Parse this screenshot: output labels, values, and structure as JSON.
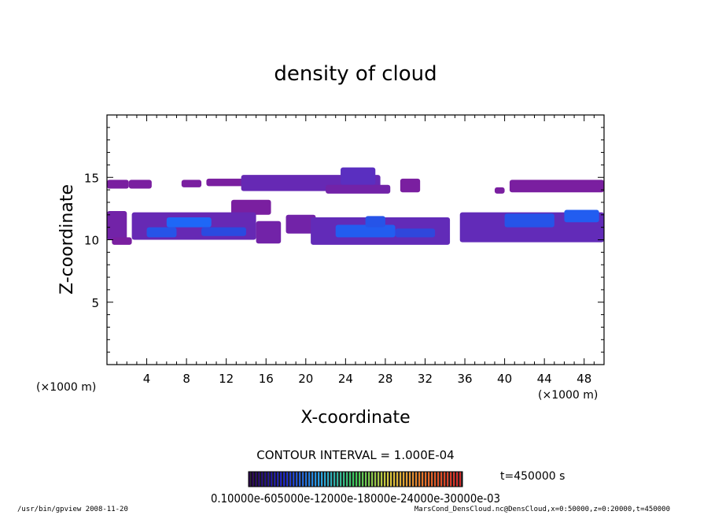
{
  "chart_data": {
    "type": "heatmap",
    "title": "density of cloud",
    "xlabel": "X-coordinate",
    "ylabel": "Z-coordinate",
    "x_units_left": "(×1000 m)",
    "x_units_right": "(×1000 m)",
    "xlim": [
      0,
      50
    ],
    "ylim": [
      0,
      20
    ],
    "x_ticks": [
      "4",
      "8",
      "12",
      "16",
      "20",
      "24",
      "28",
      "32",
      "36",
      "40",
      "44",
      "48"
    ],
    "x_tick_values": [
      4,
      8,
      12,
      16,
      20,
      24,
      28,
      32,
      36,
      40,
      44,
      48
    ],
    "y_ticks": [
      "5",
      "10",
      "15"
    ],
    "y_tick_values": [
      5,
      10,
      15
    ],
    "contour_interval": "CONTOUR INTERVAL = 1.000E-04",
    "time_label": "t=450000 s",
    "colorbar_labels": "0.10000e-605000e-12000e-18000e-24000e-30000e-03",
    "colorbar_range": [
      0.0001,
      0.0007
    ],
    "colors": {
      "low": "#7a1fa0",
      "mid": "#5a2fc0",
      "high": "#2a4ae0",
      "peak": "#1a70ff"
    },
    "regions": [
      {
        "x": [
          0,
          2.2
        ],
        "z": [
          14.1,
          14.8
        ],
        "level": 0.0001
      },
      {
        "x": [
          2.2,
          4.5
        ],
        "z": [
          14.1,
          14.8
        ],
        "level": 0.0001
      },
      {
        "x": [
          7.5,
          9.5
        ],
        "z": [
          14.2,
          14.8
        ],
        "level": 0.0001
      },
      {
        "x": [
          10,
          14
        ],
        "z": [
          14.3,
          14.9
        ],
        "level": 0.0001
      },
      {
        "x": [
          13.5,
          27.5
        ],
        "z": [
          13.9,
          15.2
        ],
        "level": 0.00015
      },
      {
        "x": [
          23.5,
          27
        ],
        "z": [
          14.4,
          15.8
        ],
        "level": 0.00018
      },
      {
        "x": [
          22,
          28.5
        ],
        "z": [
          13.7,
          14.4
        ],
        "level": 0.00012
      },
      {
        "x": [
          29.5,
          31.5
        ],
        "z": [
          13.8,
          14.9
        ],
        "level": 0.0001
      },
      {
        "x": [
          39,
          40
        ],
        "z": [
          13.7,
          14.2
        ],
        "level": 0.0001
      },
      {
        "x": [
          40.5,
          50
        ],
        "z": [
          13.8,
          14.8
        ],
        "level": 0.0001
      },
      {
        "x": [
          12.5,
          16.5
        ],
        "z": [
          12.0,
          13.2
        ],
        "level": 0.0001
      },
      {
        "x": [
          0,
          2
        ],
        "z": [
          10.0,
          12.3
        ],
        "level": 0.00012
      },
      {
        "x": [
          2.5,
          15
        ],
        "z": [
          10.0,
          12.2
        ],
        "level": 0.00015
      },
      {
        "x": [
          4,
          7
        ],
        "z": [
          10.2,
          11.0
        ],
        "level": 0.00028
      },
      {
        "x": [
          6,
          10.5
        ],
        "z": [
          11.0,
          11.8
        ],
        "level": 0.00032
      },
      {
        "x": [
          9.5,
          14
        ],
        "z": [
          10.3,
          11.0
        ],
        "level": 0.00026
      },
      {
        "x": [
          0.5,
          2.5
        ],
        "z": [
          9.6,
          10.2
        ],
        "level": 0.0001
      },
      {
        "x": [
          15,
          17.5
        ],
        "z": [
          9.7,
          11.5
        ],
        "level": 0.00012
      },
      {
        "x": [
          18,
          21
        ],
        "z": [
          10.5,
          12.0
        ],
        "level": 0.00012
      },
      {
        "x": [
          20.5,
          34.5
        ],
        "z": [
          9.6,
          11.8
        ],
        "level": 0.00016
      },
      {
        "x": [
          23,
          29
        ],
        "z": [
          10.2,
          11.2
        ],
        "level": 0.0003
      },
      {
        "x": [
          26,
          28
        ],
        "z": [
          11.0,
          11.9
        ],
        "level": 0.00028
      },
      {
        "x": [
          29,
          33
        ],
        "z": [
          10.2,
          10.9
        ],
        "level": 0.00025
      },
      {
        "x": [
          35.5,
          50
        ],
        "z": [
          9.8,
          12.2
        ],
        "level": 0.00016
      },
      {
        "x": [
          40,
          45
        ],
        "z": [
          11.0,
          12.1
        ],
        "level": 0.00028
      },
      {
        "x": [
          46,
          49.5
        ],
        "z": [
          11.4,
          12.4
        ],
        "level": 0.0003
      }
    ]
  },
  "footer": {
    "left": "/usr/bin/gpview   2008-11-20",
    "right": "MarsCond_DensCloud.nc@DensCloud,x=0:50000,z=0:20000,t=450000"
  }
}
